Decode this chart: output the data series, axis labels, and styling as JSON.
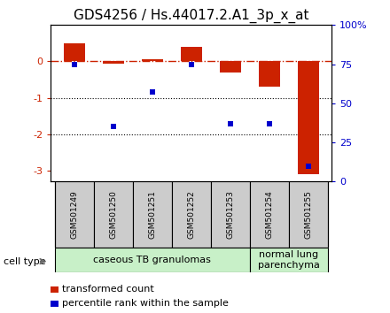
{
  "title": "GDS4256 / Hs.44017.2.A1_3p_x_at",
  "samples": [
    "GSM501249",
    "GSM501250",
    "GSM501251",
    "GSM501252",
    "GSM501253",
    "GSM501254",
    "GSM501255"
  ],
  "transformed_count": [
    0.5,
    -0.05,
    0.06,
    0.4,
    -0.3,
    -0.7,
    -3.1
  ],
  "percentile_rank": [
    75,
    35,
    57,
    75,
    37,
    37,
    10
  ],
  "ylim_left": [
    -3.3,
    1.0
  ],
  "ylim_right": [
    0,
    100
  ],
  "y_ticks_left": [
    -3,
    -2,
    -1,
    0
  ],
  "y_ticks_right": [
    0,
    25,
    50,
    75,
    100
  ],
  "y_ticks_right_labels": [
    "0",
    "25",
    "50",
    "75",
    "100%"
  ],
  "bar_color": "#cc2200",
  "dot_color": "#0000cc",
  "ref_line_color": "#cc2200",
  "grid_line_color": "#000000",
  "sample_box_color": "#cccccc",
  "group1_color": "#c8f0c8",
  "group2_color": "#c8f0c8",
  "group1_label": "caseous TB granulomas",
  "group1_range": [
    0,
    4
  ],
  "group2_label": "normal lung\nparenchyma",
  "group2_range": [
    5,
    6
  ],
  "cell_type_label": "cell type",
  "legend_items": [
    {
      "label": "transformed count",
      "color": "#cc2200"
    },
    {
      "label": "percentile rank within the sample",
      "color": "#0000cc"
    }
  ],
  "bar_width": 0.55,
  "title_fontsize": 11,
  "tick_fontsize": 8,
  "sample_fontsize": 6.5,
  "group_fontsize": 8,
  "legend_fontsize": 8
}
